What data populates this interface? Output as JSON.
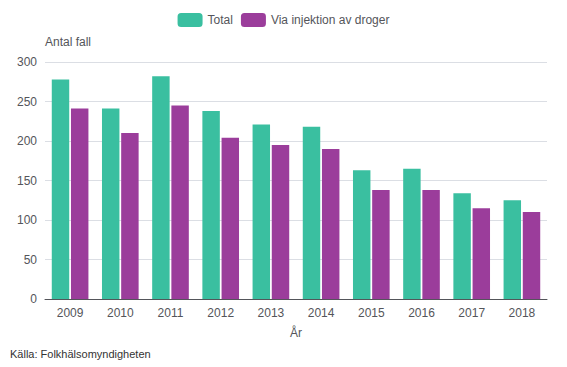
{
  "chart_data": {
    "type": "bar",
    "categories": [
      "2009",
      "2010",
      "2011",
      "2012",
      "2013",
      "2014",
      "2015",
      "2016",
      "2017",
      "2018"
    ],
    "series": [
      {
        "name": "Total",
        "color": "#3ABFA0",
        "values": [
          278,
          241,
          282,
          238,
          221,
          218,
          163,
          165,
          134,
          125
        ]
      },
      {
        "name": "Via injektion av droger",
        "color": "#9B3D9B",
        "values": [
          241,
          210,
          245,
          204,
          195,
          190,
          138,
          138,
          115,
          110
        ]
      }
    ],
    "ylabel": "Antal fall",
    "xlabel": "År",
    "annotations": [
      "Källa: Folkhälsomyndigheten"
    ],
    "ylim": [
      0,
      300
    ],
    "yticks": [
      0,
      50,
      100,
      150,
      200,
      250,
      300
    ],
    "grid": true,
    "legend": "top"
  }
}
